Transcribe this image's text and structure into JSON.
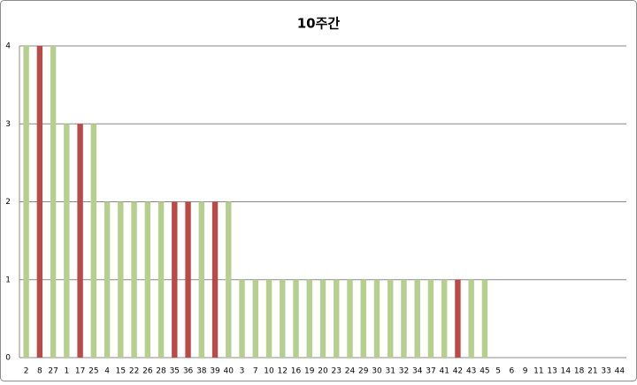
{
  "chart_data": {
    "type": "bar",
    "title": "10주간",
    "categories": [
      "2",
      "8",
      "27",
      "1",
      "17",
      "25",
      "4",
      "15",
      "22",
      "26",
      "28",
      "35",
      "36",
      "38",
      "39",
      "40",
      "3",
      "7",
      "10",
      "12",
      "16",
      "19",
      "20",
      "23",
      "24",
      "29",
      "30",
      "31",
      "32",
      "34",
      "37",
      "41",
      "42",
      "43",
      "45",
      "5",
      "6",
      "9",
      "11",
      "13",
      "14",
      "18",
      "21",
      "33",
      "44"
    ],
    "values": [
      4,
      4,
      4,
      3,
      3,
      3,
      2,
      2,
      2,
      2,
      2,
      2,
      2,
      2,
      2,
      2,
      1,
      1,
      1,
      1,
      1,
      1,
      1,
      1,
      1,
      1,
      1,
      1,
      1,
      1,
      1,
      1,
      1,
      1,
      1,
      0,
      0,
      0,
      0,
      0,
      0,
      0,
      0,
      0,
      0
    ],
    "colors": [
      "#b5cf8f",
      "#b94a48",
      "#b5cf8f",
      "#b5cf8f",
      "#b94a48",
      "#b5cf8f",
      "#b5cf8f",
      "#b5cf8f",
      "#b5cf8f",
      "#b5cf8f",
      "#b5cf8f",
      "#b94a48",
      "#b94a48",
      "#b5cf8f",
      "#b94a48",
      "#b5cf8f",
      "#b5cf8f",
      "#b5cf8f",
      "#b5cf8f",
      "#b5cf8f",
      "#b5cf8f",
      "#b5cf8f",
      "#b5cf8f",
      "#b5cf8f",
      "#b5cf8f",
      "#b5cf8f",
      "#b5cf8f",
      "#b5cf8f",
      "#b5cf8f",
      "#b5cf8f",
      "#b5cf8f",
      "#b5cf8f",
      "#b94a48",
      "#b5cf8f",
      "#b5cf8f",
      "#b5cf8f",
      "#b5cf8f",
      "#b5cf8f",
      "#b5cf8f",
      "#b5cf8f",
      "#b5cf8f",
      "#b5cf8f",
      "#b5cf8f",
      "#b5cf8f",
      "#b5cf8f"
    ],
    "ylim": [
      0,
      4
    ],
    "yticks": [
      0,
      1,
      2,
      3,
      4
    ],
    "grid": true
  }
}
